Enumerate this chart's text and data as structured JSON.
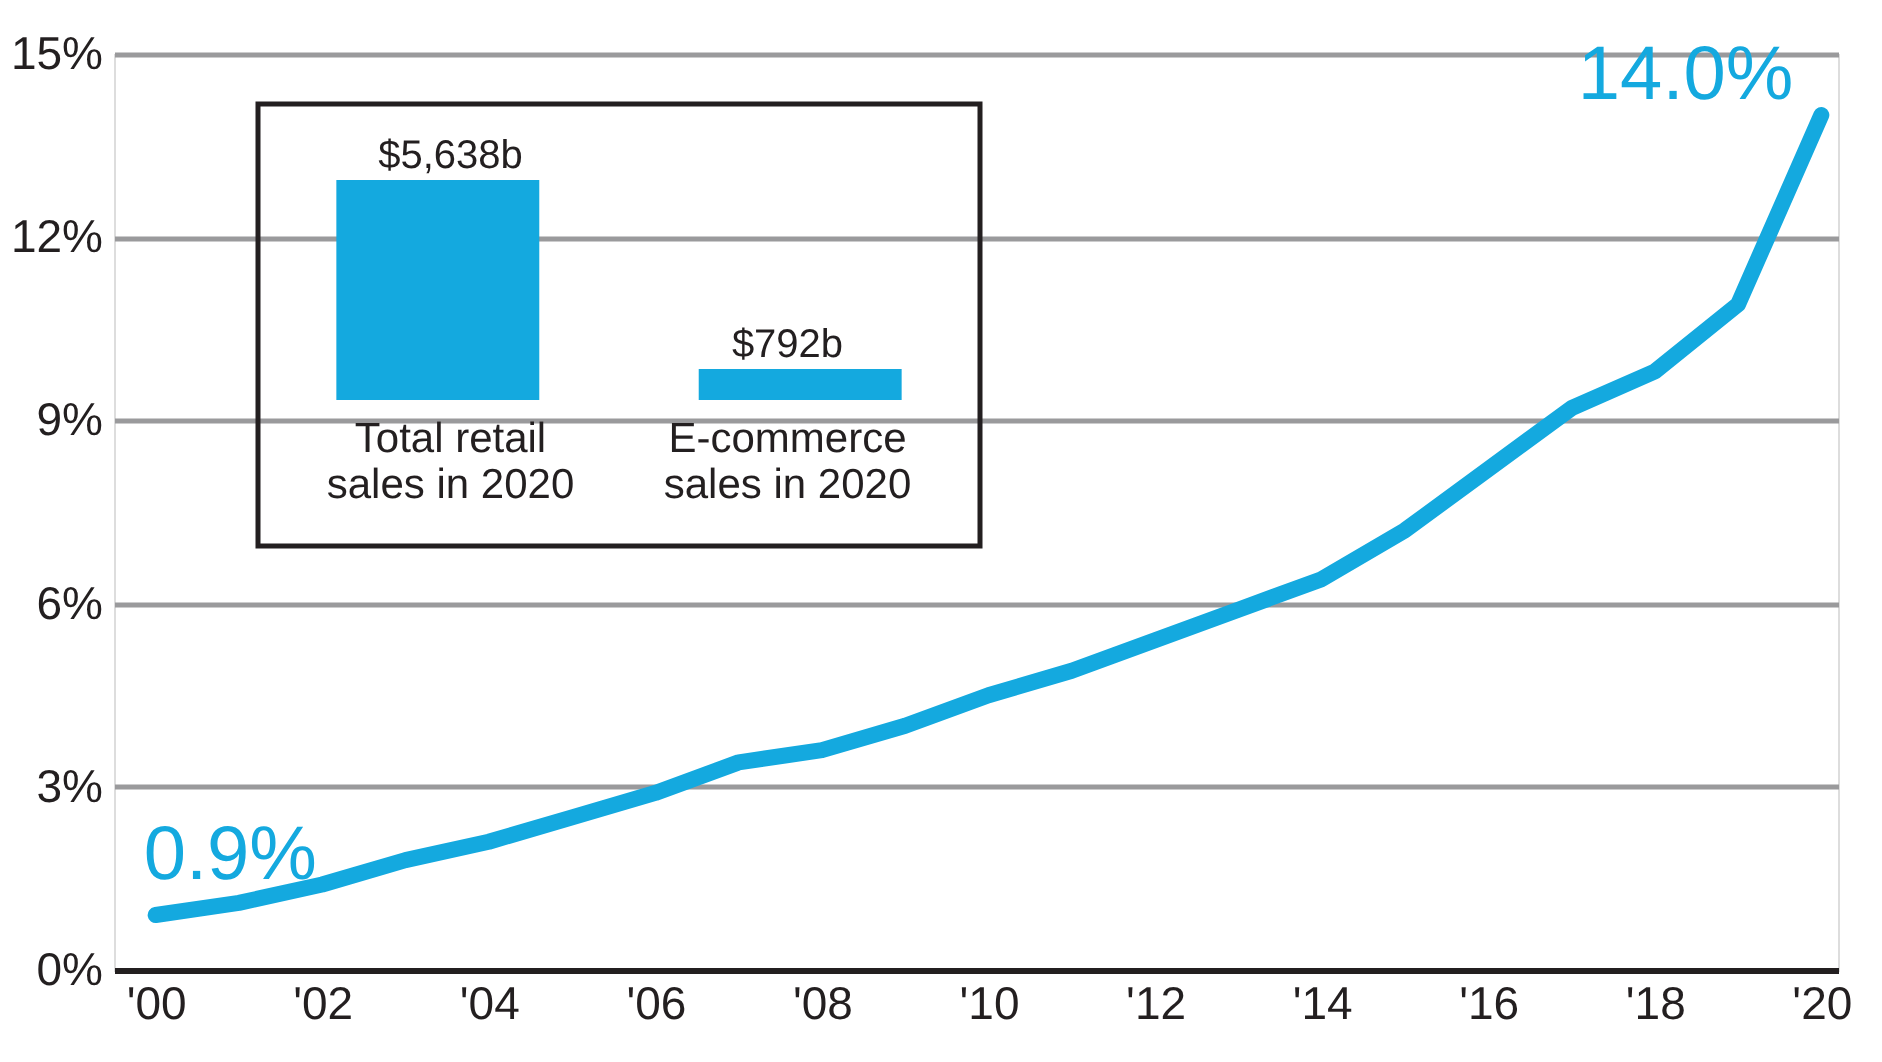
{
  "chart_data": [
    {
      "type": "line",
      "x": [
        2000,
        2001,
        2002,
        2003,
        2004,
        2005,
        2006,
        2007,
        2008,
        2009,
        2010,
        2011,
        2012,
        2013,
        2014,
        2015,
        2016,
        2017,
        2018,
        2019,
        2020
      ],
      "series": [
        {
          "color": "#14a9df",
          "values": [
            0.9,
            1.1,
            1.4,
            1.8,
            2.1,
            2.5,
            2.9,
            3.4,
            3.6,
            4.0,
            4.5,
            4.9,
            5.4,
            5.9,
            6.4,
            7.2,
            8.2,
            9.2,
            9.8,
            10.9,
            14.0
          ],
          "value_labels": [
            "0.9%",
            null,
            null,
            null,
            null,
            null,
            null,
            null,
            null,
            null,
            null,
            null,
            null,
            null,
            null,
            null,
            null,
            null,
            null,
            null,
            "14.0%"
          ]
        }
      ],
      "xlim": [
        1999.5,
        2020.2
      ],
      "xticks": [
        {
          "value": 2000,
          "label": "'00"
        },
        {
          "value": 2002,
          "label": "'02"
        },
        {
          "value": 2004,
          "label": "'04"
        },
        {
          "value": 2006,
          "label": "'06"
        },
        {
          "value": 2008,
          "label": "'08"
        },
        {
          "value": 2010,
          "label": "'10"
        },
        {
          "value": 2012,
          "label": "'12"
        },
        {
          "value": 2014,
          "label": "'14"
        },
        {
          "value": 2016,
          "label": "'16"
        },
        {
          "value": 2018,
          "label": "'18"
        },
        {
          "value": 2020,
          "label": "'20"
        }
      ],
      "ylim": [
        0,
        15
      ],
      "yticks": [
        {
          "value": 0,
          "label": "0%"
        },
        {
          "value": 3,
          "label": "3%"
        },
        {
          "value": 6,
          "label": "6%"
        },
        {
          "value": 9,
          "label": "9%"
        },
        {
          "value": 12,
          "label": "12%"
        },
        {
          "value": 15,
          "label": "15%"
        }
      ],
      "grid": "y",
      "marker": "none",
      "line_style": "solid"
    },
    {
      "type": "bar",
      "categories": [
        "Total retail\nsales in 2020",
        "E-commerce\nsales in 2020"
      ],
      "values": [
        5638,
        792
      ],
      "colors": [
        "#14a9df",
        "#14a9df"
      ],
      "value_labels": [
        "$5,638b",
        "$792b"
      ]
    }
  ]
}
